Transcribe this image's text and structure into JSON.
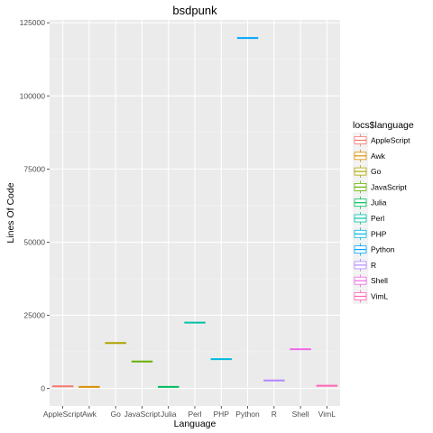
{
  "chart_data": {
    "type": "boxplot",
    "title": "bsdpunk",
    "xlabel": "Language",
    "ylabel": "Lines Of Code",
    "ylim": [
      -6000,
      126000
    ],
    "yticks": [
      0,
      25000,
      50000,
      75000,
      100000,
      125000
    ],
    "ytick_labels": [
      "0",
      "25000",
      "50000",
      "75000",
      "100000",
      "125000"
    ],
    "grid": true,
    "legend": {
      "title": "locs$language",
      "placement": "right"
    },
    "categories": [
      "AppleScript",
      "Awk",
      "Go",
      "JavaScript",
      "Julia",
      "Perl",
      "PHP",
      "Python",
      "R",
      "Shell",
      "VimL"
    ],
    "values": [
      700,
      500,
      15500,
      9200,
      500,
      22500,
      10000,
      119800,
      2700,
      13400,
      900
    ],
    "colors": [
      "#F8766D",
      "#DB8E00",
      "#AEA200",
      "#64B200",
      "#00BD5C",
      "#00C1A7",
      "#00BADE",
      "#00A6FF",
      "#B385FF",
      "#EF67EB",
      "#FF63B6"
    ]
  }
}
